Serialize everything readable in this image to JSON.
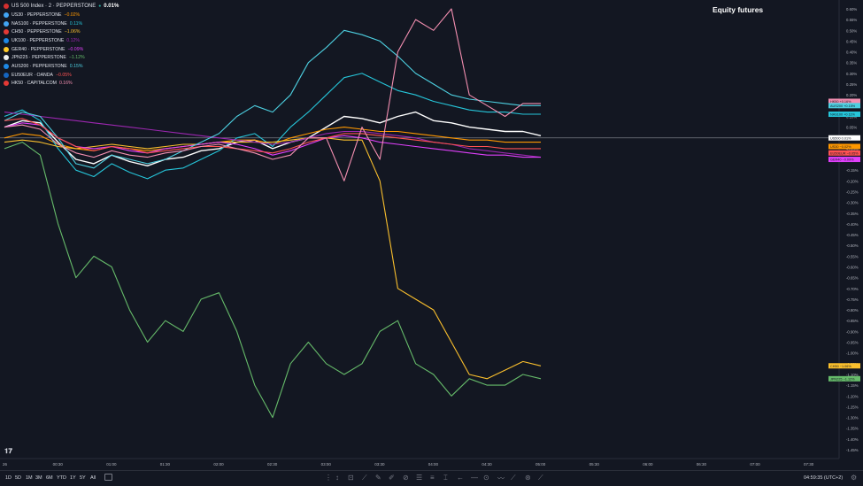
{
  "chart": {
    "title": "Equity futures",
    "timezone_label": "04:59:35 (UTC+2)"
  },
  "legend": [
    {
      "name": "US 500 Index · 2 · PEPPERSTONE",
      "change": "0.01%",
      "flag": "#d32f2f",
      "change_color": "#ffffff"
    },
    {
      "name": "US30 · PEPPERSTONE",
      "change": "−0.02%",
      "flag": "#42a5f5",
      "change_color": "#ff9800"
    },
    {
      "name": "NAS100 · PEPPERSTONE",
      "change": "0.11%",
      "flag": "#42a5f5",
      "change_color": "#26c6da"
    },
    {
      "name": "CH50 · PEPPERSTONE",
      "change": "−1.06%",
      "flag": "#e53935",
      "change_color": "#fbc02d"
    },
    {
      "name": "UK100 · PEPPERSTONE",
      "change": "0.12%",
      "flag": "#1e88e5",
      "change_color": "#9c27b0"
    },
    {
      "name": "GER40 · PEPPERSTONE",
      "change": "−0.09%",
      "flag": "#ffca28",
      "change_color": "#e040fb"
    },
    {
      "name": "JPN225 · PEPPERSTONE",
      "change": "−1.12%",
      "flag": "#eceff1",
      "change_color": "#66bb6a"
    },
    {
      "name": "AUS200 · PEPPERSTONE",
      "change": "0.15%",
      "flag": "#1e88e5",
      "change_color": "#4dd0e1"
    },
    {
      "name": "EU50EUR · OANDA",
      "change": "−0.05%",
      "flag": "#1565c0",
      "change_color": "#ff5252"
    },
    {
      "name": "HK50 · CAPITALCOM",
      "change": "0.16%",
      "flag": "#e53935",
      "change_color": "#f48fb1"
    }
  ],
  "price_scale": {
    "ticks": [
      "0.60%",
      "0.55%",
      "0.50%",
      "0.45%",
      "0.40%",
      "0.35%",
      "0.30%",
      "0.25%",
      "0.20%",
      "0.15%",
      "0.10%",
      "0.05%",
      "0.00%",
      "-0.05%",
      "-0.10%",
      "-0.15%",
      "-0.20%",
      "-0.25%",
      "-0.30%",
      "-0.35%",
      "-0.40%",
      "-0.45%",
      "-0.50%",
      "-0.55%",
      "-0.60%",
      "-0.65%",
      "-0.70%",
      "-0.75%",
      "-0.80%",
      "-0.85%",
      "-0.90%",
      "-0.95%",
      "-1.00%",
      "-1.05%",
      "-1.10%",
      "-1.15%",
      "-1.20%",
      "-1.25%",
      "-1.30%",
      "-1.35%",
      "-1.40%",
      "-1.45%"
    ]
  },
  "price_labels": [
    {
      "text": "HK50 +0.16%",
      "color": "#f48fb1",
      "value": 0.17
    },
    {
      "text": "AUS200 +0.15%",
      "color": "#4dd0e1",
      "value": 0.15
    },
    {
      "text": "NAS100 +0.11%",
      "color": "#26c6da",
      "value": 0.11
    },
    {
      "text": "US500 0.01%",
      "color": "#ffffff",
      "value": 0.0
    },
    {
      "text": "US30 −0.02%",
      "color": "#ff9800",
      "value": -0.04
    },
    {
      "text": "EU50EUR −0.05%",
      "color": "#ff5252",
      "value": -0.07
    },
    {
      "text": "GER40 −0.09%",
      "color": "#e040fb",
      "value": -0.1
    },
    {
      "text": "CH50 −1.06%",
      "color": "#fbc02d",
      "value": -1.06
    },
    {
      "text": "JPN225 −1.12%",
      "color": "#66bb6a",
      "value": -1.12
    }
  ],
  "time_axis": {
    "labels": [
      "26",
      "00:30",
      "01:00",
      "01:30",
      "02:00",
      "02:30",
      "03:00",
      "03:30",
      "04:00",
      "04:30",
      "05:00",
      "05:30",
      "06:00",
      "06:30",
      "07:00",
      "07:30"
    ]
  },
  "bottom_bar": {
    "ranges": [
      "1D",
      "5D",
      "1M",
      "3M",
      "6M",
      "YTD",
      "1Y",
      "5Y",
      "All"
    ]
  },
  "chart_data": {
    "type": "line",
    "x_label": "",
    "y_label": "",
    "ylim": [
      -1.45,
      0.6
    ],
    "x": [
      "00:00",
      "00:10",
      "00:20",
      "00:30",
      "00:40",
      "00:50",
      "01:00",
      "01:10",
      "01:20",
      "01:30",
      "01:40",
      "01:50",
      "02:00",
      "02:10",
      "02:20",
      "02:30",
      "02:40",
      "02:50",
      "03:00",
      "03:10",
      "03:20",
      "03:30",
      "03:40",
      "03:50",
      "04:00",
      "04:10",
      "04:20",
      "04:30",
      "04:40",
      "04:50",
      "05:00"
    ],
    "series": [
      {
        "name": "US 500 Index · 2 · PEPPERSTONE",
        "color": "#ffffff",
        "values": [
          0.05,
          0.08,
          0.07,
          -0.02,
          -0.1,
          -0.12,
          -0.08,
          -0.11,
          -0.13,
          -0.1,
          -0.09,
          -0.06,
          -0.05,
          -0.02,
          -0.01,
          -0.05,
          -0.02,
          0.0,
          0.05,
          0.1,
          0.09,
          0.07,
          0.1,
          0.12,
          0.08,
          0.07,
          0.05,
          0.04,
          0.03,
          0.03,
          0.01
        ]
      },
      {
        "name": "US30 · PEPPERSTONE",
        "color": "#ff9800",
        "values": [
          0.0,
          0.02,
          0.01,
          -0.03,
          -0.05,
          -0.06,
          -0.04,
          -0.05,
          -0.06,
          -0.05,
          -0.04,
          -0.03,
          -0.02,
          -0.01,
          -0.01,
          -0.03,
          0.0,
          0.02,
          0.04,
          0.05,
          0.04,
          0.03,
          0.03,
          0.02,
          0.01,
          0.0,
          -0.01,
          -0.01,
          -0.02,
          -0.02,
          -0.02
        ]
      },
      {
        "name": "NAS100 · PEPPERSTONE",
        "color": "#26c6da",
        "values": [
          0.1,
          0.13,
          0.08,
          -0.05,
          -0.15,
          -0.18,
          -0.12,
          -0.16,
          -0.19,
          -0.15,
          -0.14,
          -0.1,
          -0.06,
          0.0,
          0.02,
          -0.04,
          0.05,
          0.12,
          0.2,
          0.28,
          0.3,
          0.26,
          0.22,
          0.2,
          0.17,
          0.15,
          0.13,
          0.12,
          0.12,
          0.11,
          0.11
        ]
      },
      {
        "name": "CH50 · PEPPERSTONE",
        "color": "#fbc02d",
        "values": [
          -0.02,
          -0.01,
          -0.02,
          -0.04,
          -0.05,
          -0.04,
          -0.03,
          -0.04,
          -0.05,
          -0.04,
          -0.03,
          -0.03,
          -0.02,
          -0.02,
          -0.02,
          -0.02,
          -0.01,
          0.0,
          0.0,
          -0.01,
          -0.01,
          -0.2,
          -0.7,
          -0.75,
          -0.8,
          -0.95,
          -1.1,
          -1.12,
          -1.08,
          -1.04,
          -1.06
        ]
      },
      {
        "name": "UK100 · PEPPERSTONE",
        "color": "#9c27b0",
        "values": [
          0.12,
          0.11,
          0.1,
          0.09,
          0.08,
          0.07,
          0.06,
          0.05,
          0.04,
          0.03,
          0.02,
          0.01,
          0.0,
          -0.01,
          -0.02,
          -0.03,
          -0.02,
          0.0,
          0.02,
          0.03,
          0.03,
          0.02,
          0.01,
          0.0,
          -0.02,
          -0.03,
          -0.05,
          -0.06,
          -0.07,
          -0.08,
          -0.09
        ]
      },
      {
        "name": "GER40 · PEPPERSTONE",
        "color": "#e040fb",
        "values": [
          0.05,
          0.07,
          0.06,
          0.0,
          -0.04,
          -0.05,
          -0.04,
          -0.06,
          -0.07,
          -0.05,
          -0.04,
          -0.03,
          -0.02,
          -0.03,
          -0.05,
          -0.08,
          -0.06,
          -0.03,
          0.0,
          0.01,
          0.0,
          -0.02,
          -0.03,
          -0.04,
          -0.05,
          -0.06,
          -0.07,
          -0.08,
          -0.08,
          -0.09,
          -0.09
        ]
      },
      {
        "name": "JPN225 · PEPPERSTONE",
        "color": "#66bb6a",
        "values": [
          -0.05,
          -0.02,
          -0.08,
          -0.4,
          -0.65,
          -0.55,
          -0.6,
          -0.8,
          -0.95,
          -0.85,
          -0.9,
          -0.75,
          -0.72,
          -0.9,
          -1.15,
          -1.3,
          -1.05,
          -0.95,
          -1.05,
          -1.1,
          -1.05,
          -0.9,
          -0.85,
          -1.05,
          -1.1,
          -1.2,
          -1.12,
          -1.15,
          -1.15,
          -1.1,
          -1.12
        ]
      },
      {
        "name": "AUS200 · PEPPERSTONE",
        "color": "#4dd0e1",
        "values": [
          0.08,
          0.12,
          0.1,
          0.0,
          -0.12,
          -0.14,
          -0.08,
          -0.1,
          -0.12,
          -0.1,
          -0.06,
          -0.02,
          0.02,
          0.1,
          0.15,
          0.12,
          0.2,
          0.35,
          0.42,
          0.5,
          0.48,
          0.45,
          0.38,
          0.3,
          0.25,
          0.2,
          0.18,
          0.17,
          0.16,
          0.15,
          0.15
        ]
      },
      {
        "name": "EU50EUR · OANDA",
        "color": "#ff5252",
        "values": [
          0.08,
          0.09,
          0.06,
          0.0,
          -0.04,
          -0.06,
          -0.04,
          -0.05,
          -0.07,
          -0.06,
          -0.05,
          -0.04,
          -0.04,
          -0.05,
          -0.06,
          -0.07,
          -0.05,
          -0.02,
          0.0,
          0.02,
          0.02,
          0.01,
          0.0,
          -0.01,
          -0.02,
          -0.03,
          -0.04,
          -0.04,
          -0.05,
          -0.05,
          -0.05
        ]
      },
      {
        "name": "HK50 · CAPITALCOM",
        "color": "#f48fb1",
        "values": [
          0.05,
          0.06,
          0.04,
          -0.03,
          -0.07,
          -0.09,
          -0.06,
          -0.08,
          -0.09,
          -0.07,
          -0.06,
          -0.04,
          -0.03,
          -0.05,
          -0.07,
          -0.1,
          -0.08,
          0.0,
          0.0,
          -0.2,
          0.05,
          -0.1,
          0.4,
          0.55,
          0.5,
          0.6,
          0.2,
          0.15,
          0.1,
          0.16,
          0.16
        ]
      }
    ]
  }
}
